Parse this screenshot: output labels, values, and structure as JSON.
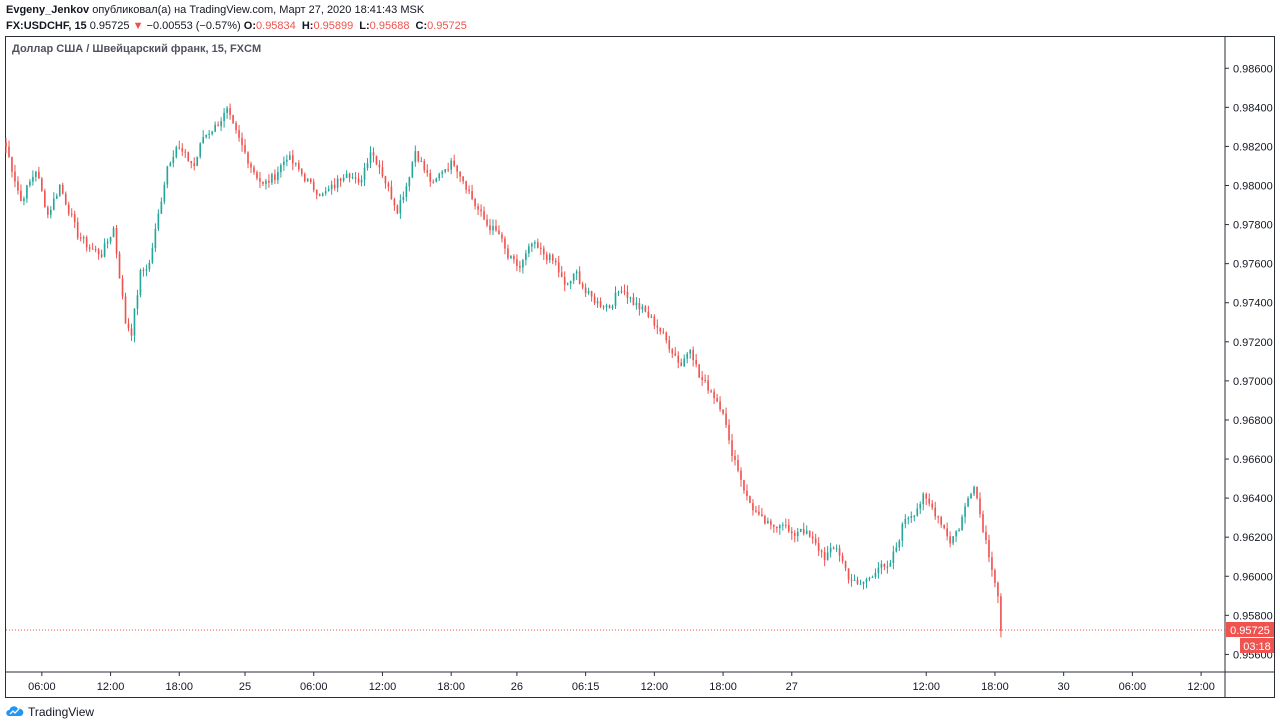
{
  "header": {
    "author": "Evgeny_Jenkov",
    "published": "опубликовал(а) на TradingView.com, Март 27, 2020 18:41:43 MSK",
    "symbol": "FX:USDCHF, 15",
    "last": "0.95725",
    "change_arrow": "▼",
    "change": "−0.00553 (−0.57%)",
    "o_label": "O:",
    "o": "0.95834",
    "h_label": "H:",
    "h": "0.95899",
    "l_label": "L:",
    "l": "0.95688",
    "c_label": "C:",
    "c": "0.95725"
  },
  "legend_title": "Доллар США / Швейцарский франк, 15, FXCM",
  "footer": {
    "brand": "TradingView",
    "logo_icon": "tradingview-logo-icon"
  },
  "colors": {
    "up": "#26a69a",
    "down": "#ef5350",
    "price_line": "#ef5350"
  },
  "chart_data": {
    "type": "candlestick",
    "symbol": "FX:USDCHF",
    "interval": "15",
    "y_ticks": [
      "0.98600",
      "0.98400",
      "0.98200",
      "0.98000",
      "0.97800",
      "0.97600",
      "0.97400",
      "0.97200",
      "0.97000",
      "0.96800",
      "0.96600",
      "0.96400",
      "0.96200",
      "0.96000",
      "0.95800",
      "0.95600"
    ],
    "ylim": [
      0.9551,
      0.9876
    ],
    "x_ticks": [
      "06:00",
      "12:00",
      "18:00",
      "25",
      "06:00",
      "12:00",
      "18:00",
      "26",
      "06:15",
      "12:00",
      "18:00",
      "27",
      "12:00",
      "18:00",
      "30",
      "06:00",
      "12:00"
    ],
    "x_tick_pos": [
      12,
      35,
      58,
      80,
      103,
      126,
      149,
      171,
      194,
      217,
      240,
      263,
      308,
      331,
      354,
      377,
      400
    ],
    "xlim": [
      0,
      408
    ],
    "last_price": "0.95725",
    "countdown": "03:18",
    "grid": false,
    "close_path": [
      [
        0,
        0.982
      ],
      [
        5,
        0.9792
      ],
      [
        10,
        0.9808
      ],
      [
        14,
        0.9785
      ],
      [
        18,
        0.98
      ],
      [
        24,
        0.9775
      ],
      [
        28,
        0.9768
      ],
      [
        32,
        0.9765
      ],
      [
        36,
        0.9778
      ],
      [
        40,
        0.973
      ],
      [
        42,
        0.9725
      ],
      [
        45,
        0.9755
      ],
      [
        48,
        0.976
      ],
      [
        51,
        0.9785
      ],
      [
        54,
        0.981
      ],
      [
        57,
        0.982
      ],
      [
        60,
        0.9815
      ],
      [
        63,
        0.981
      ],
      [
        66,
        0.9825
      ],
      [
        70,
        0.983
      ],
      [
        74,
        0.9838
      ],
      [
        76,
        0.983
      ],
      [
        79,
        0.982
      ],
      [
        82,
        0.981
      ],
      [
        86,
        0.98
      ],
      [
        90,
        0.9805
      ],
      [
        94,
        0.9815
      ],
      [
        98,
        0.9808
      ],
      [
        102,
        0.98
      ],
      [
        106,
        0.9795
      ],
      [
        110,
        0.98
      ],
      [
        114,
        0.9808
      ],
      [
        118,
        0.98
      ],
      [
        122,
        0.9818
      ],
      [
        125,
        0.981
      ],
      [
        128,
        0.9798
      ],
      [
        131,
        0.9788
      ],
      [
        134,
        0.98
      ],
      [
        137,
        0.9818
      ],
      [
        140,
        0.9808
      ],
      [
        143,
        0.98
      ],
      [
        146,
        0.9808
      ],
      [
        150,
        0.9812
      ],
      [
        154,
        0.98
      ],
      [
        157,
        0.979
      ],
      [
        161,
        0.978
      ],
      [
        165,
        0.9775
      ],
      [
        168,
        0.9763
      ],
      [
        172,
        0.9758
      ],
      [
        176,
        0.977
      ],
      [
        180,
        0.9765
      ],
      [
        184,
        0.976
      ],
      [
        187,
        0.9748
      ],
      [
        191,
        0.9755
      ],
      [
        194,
        0.9745
      ],
      [
        198,
        0.974
      ],
      [
        202,
        0.9738
      ],
      [
        206,
        0.9748
      ],
      [
        210,
        0.974
      ],
      [
        214,
        0.9735
      ],
      [
        218,
        0.9728
      ],
      [
        222,
        0.9718
      ],
      [
        226,
        0.9708
      ],
      [
        229,
        0.9718
      ],
      [
        232,
        0.9702
      ],
      [
        236,
        0.9695
      ],
      [
        240,
        0.9685
      ],
      [
        242,
        0.9668
      ],
      [
        245,
        0.9655
      ],
      [
        248,
        0.964
      ],
      [
        252,
        0.963
      ],
      [
        256,
        0.9625
      ],
      [
        260,
        0.9628
      ],
      [
        263,
        0.962
      ],
      [
        266,
        0.9625
      ],
      [
        270,
        0.9618
      ],
      [
        274,
        0.961
      ],
      [
        278,
        0.9615
      ],
      [
        282,
        0.96
      ],
      [
        285,
        0.9595
      ],
      [
        288,
        0.9598
      ],
      [
        292,
        0.9605
      ],
      [
        295,
        0.9603
      ],
      [
        298,
        0.9615
      ],
      [
        301,
        0.963
      ],
      [
        304,
        0.9633
      ],
      [
        307,
        0.964
      ],
      [
        310,
        0.9635
      ],
      [
        313,
        0.9628
      ],
      [
        316,
        0.9618
      ],
      [
        319,
        0.9625
      ],
      [
        322,
        0.964
      ],
      [
        324,
        0.9648
      ],
      [
        326,
        0.9632
      ],
      [
        328,
        0.9618
      ],
      [
        330,
        0.9605
      ],
      [
        332,
        0.959
      ],
      [
        333,
        0.9572
      ]
    ]
  }
}
